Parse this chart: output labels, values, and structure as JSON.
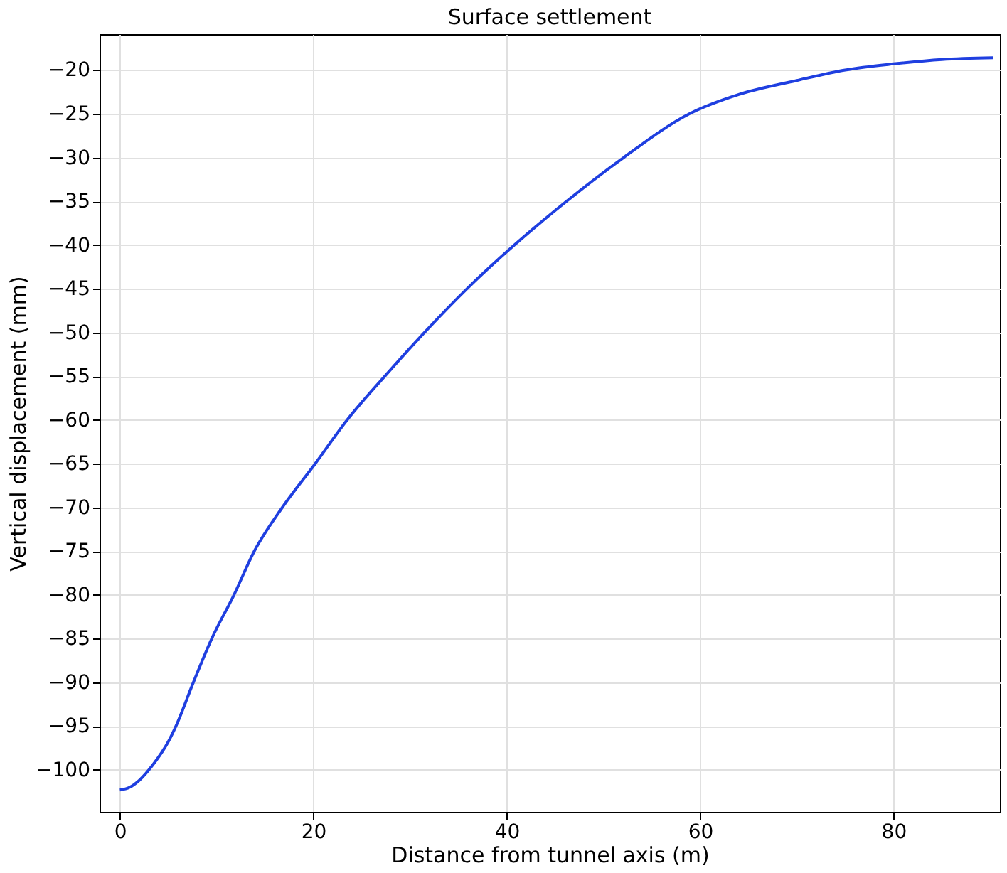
{
  "chart_data": {
    "type": "line",
    "title": "Surface settlement",
    "xlabel": "Distance from tunnel axis (m)",
    "ylabel": "Vertical displacement (mm)",
    "x": [
      0,
      1,
      2,
      3.5,
      5,
      5.8,
      7.6,
      9.5,
      11.8,
      13.9,
      16.8,
      20.2,
      23.5,
      27.4,
      31.5,
      35.9,
      40.8,
      46.2,
      52.1,
      58.9,
      64,
      70,
      75,
      80,
      85,
      90.3
    ],
    "series": [
      {
        "color": "#1f3fe0",
        "values": [
          -102.3,
          -102,
          -101.2,
          -99.3,
          -96.8,
          -95,
          -90,
          -85,
          -80,
          -75,
          -70,
          -65,
          -60,
          -55,
          -50,
          -45,
          -40,
          -35,
          -30,
          -25,
          -22.8,
          -21.2,
          -20,
          -19.3,
          -18.8,
          -18.6
        ]
      }
    ],
    "xlim": [
      -2.1,
      91
    ],
    "xticks": [
      0,
      20,
      40,
      60,
      80
    ],
    "ylim": [
      -104.8,
      -15.9
    ],
    "yticks": [
      -100,
      -95,
      -90,
      -85,
      -80,
      -75,
      -70,
      -65,
      -60,
      -55,
      -50,
      -45,
      -40,
      -35,
      -30,
      -25,
      -20
    ],
    "grid": true,
    "marker": "none",
    "line_style": "solid"
  }
}
